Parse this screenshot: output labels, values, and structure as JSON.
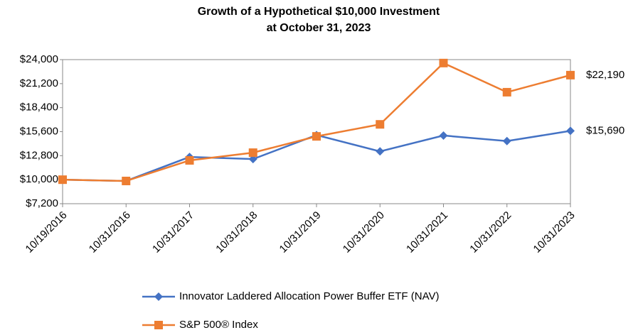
{
  "chart_data": {
    "type": "line",
    "title": "Growth of a Hypothetical $10,000 Investment",
    "subtitle": "at October 31, 2023",
    "categories": [
      "10/19/2016",
      "10/31/2016",
      "10/31/2017",
      "10/31/2018",
      "10/31/2019",
      "10/31/2020",
      "10/31/2021",
      "10/31/2022",
      "10/31/2023"
    ],
    "series": [
      {
        "name": "Innovator Laddered Allocation Power Buffer ETF (NAV)",
        "color": "#4472c4",
        "marker": "diamond",
        "values": [
          10000,
          9850,
          12650,
          12400,
          15200,
          13300,
          15150,
          14500,
          15690
        ],
        "value_labels": [
          null,
          null,
          null,
          null,
          null,
          null,
          null,
          null,
          "$15,690"
        ]
      },
      {
        "name": "S&P 500® Index",
        "color": "#ed7d31",
        "marker": "square",
        "values": [
          10000,
          9850,
          12250,
          13150,
          15050,
          16450,
          23600,
          20200,
          22190
        ],
        "value_labels": [
          null,
          null,
          null,
          null,
          null,
          null,
          null,
          null,
          "$22,190"
        ]
      }
    ],
    "ylim": [
      7200,
      24000
    ],
    "yticks": [
      {
        "value": 7200,
        "label": "$7,200"
      },
      {
        "value": 10000,
        "label": "$10,000"
      },
      {
        "value": 12800,
        "label": "$12,800"
      },
      {
        "value": 15600,
        "label": "$15,600"
      },
      {
        "value": 18400,
        "label": "$18,400"
      },
      {
        "value": 21200,
        "label": "$21,200"
      },
      {
        "value": 24000,
        "label": "$24,000"
      }
    ],
    "grid": false,
    "legend": "bottom"
  }
}
